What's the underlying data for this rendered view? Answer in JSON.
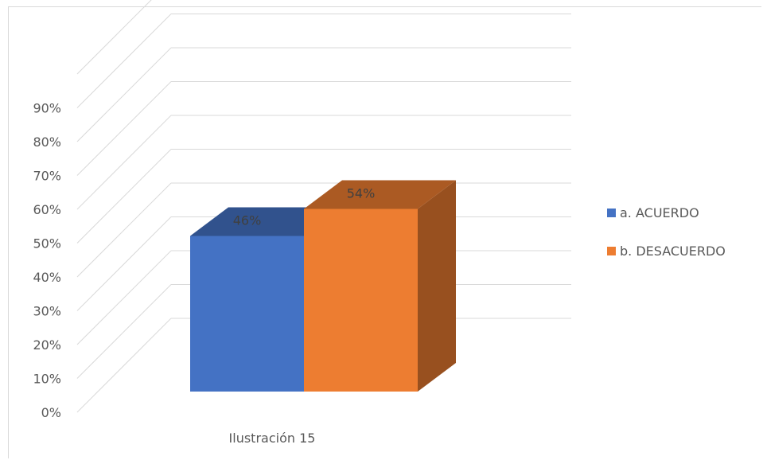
{
  "chart_data": {
    "type": "bar",
    "title": "",
    "categories": [
      "Ilustración 15"
    ],
    "series": [
      {
        "name": "a. ACUERDO",
        "values": [
          0.46
        ],
        "label": "46%",
        "color": "#4472C4"
      },
      {
        "name": "b. DESACUERDO",
        "values": [
          0.54
        ],
        "label": "54%",
        "color": "#ED7D31"
      }
    ],
    "y_ticks": [
      "0%",
      "10%",
      "20%",
      "30%",
      "40%",
      "50%",
      "60%",
      "70%",
      "80%",
      "90%"
    ],
    "ylim": [
      0,
      1.0
    ],
    "grid": true,
    "three_d": true,
    "legend_position": "right"
  }
}
